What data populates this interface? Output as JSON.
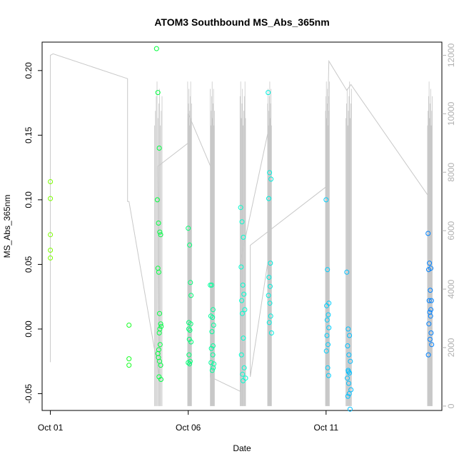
{
  "chart_data": {
    "type": "scatter",
    "title": "ATOM3 Southbound MS_Abs_365nm",
    "xlabel": "Date",
    "ylabel": "MS_Abs_365nm",
    "x_ticks": [
      "Oct 01",
      "Oct 06",
      "Oct 11"
    ],
    "x_tick_days": [
      1,
      6,
      11
    ],
    "xlim": [
      0.7,
      15.2
    ],
    "ylim": [
      -0.063,
      0.222
    ],
    "y_ticks": [
      -0.05,
      0.0,
      0.05,
      0.1,
      0.15,
      0.2
    ],
    "y_tick_labels": [
      "-0.05",
      "0.00",
      "0.05",
      "0.10",
      "0.15",
      "0.20"
    ],
    "y2lim": [
      -150,
      12450
    ],
    "y2_ticks": [
      0,
      2000,
      4000,
      6000,
      8000,
      10000,
      12000
    ],
    "y2_tick_labels": [
      "0",
      "2000",
      "4000",
      "6000",
      "8000",
      "10000",
      "12000"
    ],
    "grid": false,
    "colors": {
      "axis": "#000000",
      "altitude_line": "#c8c8c8",
      "right_axis": "#b0b0b0",
      "point_palette": [
        "#7cff00",
        "#00ff2a",
        "#00ffd0",
        "#00c8ff",
        "#0080ff"
      ]
    },
    "series": [
      {
        "x": [
          1.0,
          1.0,
          1.0,
          1.0,
          1.0,
          3.85,
          3.85,
          3.85,
          4.85,
          4.9,
          4.95,
          4.88,
          4.92,
          4.97,
          5.0,
          4.9,
          4.93,
          4.96,
          5.0,
          5.02,
          4.95,
          4.98,
          4.9,
          4.92,
          4.96,
          5.0,
          4.94,
          5.01,
          4.97,
          4.93,
          6.0,
          6.05,
          6.08,
          6.1,
          6.02,
          6.06,
          6.04,
          6.1,
          6.03,
          6.07,
          6.0,
          6.05,
          6.09,
          6.02,
          6.8,
          6.85,
          6.9,
          6.82,
          6.88,
          6.92,
          6.86,
          6.9,
          6.84,
          6.89,
          6.83,
          6.91,
          6.87,
          6.93,
          7.9,
          7.95,
          8.0,
          7.92,
          7.98,
          8.02,
          7.94,
          8.05,
          7.96,
          8.0,
          7.93,
          8.03,
          7.97,
          8.08,
          7.99,
          8.9,
          8.95,
          9.0,
          8.92,
          8.98,
          8.93,
          8.97,
          8.91,
          8.96,
          8.94,
          8.99,
          9.02,
          11.0,
          11.05,
          11.1,
          11.02,
          11.08,
          11.04,
          11.1,
          11.03,
          11.07,
          11.01,
          11.06,
          11.09,
          11.75,
          11.8,
          11.85,
          11.78,
          11.83,
          11.88,
          11.8,
          11.85,
          11.77,
          11.82,
          11.9,
          11.84,
          11.79,
          11.87,
          11.81,
          14.7,
          14.75,
          14.8,
          14.72,
          14.78,
          14.82,
          14.74,
          14.8,
          14.76,
          14.79,
          14.73,
          14.81,
          14.77,
          14.83,
          14.71
        ],
        "y": [
          0.114,
          0.101,
          0.073,
          0.061,
          0.055,
          0.003,
          -0.023,
          -0.028,
          0.217,
          0.183,
          0.14,
          0.1,
          0.082,
          0.075,
          0.073,
          0.047,
          0.044,
          0.012,
          0.004,
          0.002,
          -0.003,
          -0.012,
          -0.019,
          -0.022,
          -0.025,
          -0.028,
          -0.037,
          -0.039,
          0.0,
          -0.016,
          0.078,
          0.065,
          0.036,
          0.026,
          0.005,
          -0.001,
          -0.008,
          -0.01,
          -0.02,
          -0.025,
          -0.026,
          -0.027,
          0.004,
          0.0,
          0.034,
          0.034,
          0.015,
          0.01,
          0.009,
          0.003,
          -0.002,
          -0.013,
          -0.015,
          -0.02,
          -0.026,
          -0.03,
          -0.032,
          -0.027,
          0.094,
          0.083,
          0.071,
          0.048,
          0.034,
          0.027,
          0.022,
          0.015,
          0.012,
          -0.007,
          -0.02,
          -0.03,
          -0.035,
          -0.038,
          -0.04,
          0.183,
          0.121,
          0.116,
          0.101,
          0.051,
          0.04,
          0.033,
          0.026,
          0.02,
          0.005,
          0.01,
          -0.003,
          0.1,
          0.046,
          0.02,
          0.018,
          0.011,
          0.007,
          0.001,
          -0.005,
          -0.012,
          -0.017,
          -0.03,
          -0.036,
          0.044,
          0.0,
          -0.005,
          -0.013,
          -0.02,
          -0.025,
          -0.032,
          -0.034,
          -0.038,
          -0.042,
          -0.047,
          -0.05,
          -0.052,
          -0.062,
          -0.033,
          0.074,
          0.051,
          0.047,
          0.046,
          0.03,
          0.022,
          0.022,
          0.015,
          0.013,
          0.01,
          0.004,
          -0.003,
          -0.008,
          -0.012,
          -0.02
        ]
      }
    ],
    "altitude_series": {
      "x": [
        1.0,
        1.0,
        1.1,
        3.8,
        3.8,
        3.85,
        4.95,
        4.9,
        6.0,
        6.0,
        6.9,
        6.8,
        7.9,
        7.9,
        8.9,
        8.9,
        8.25,
        8.25,
        11.0,
        11.1,
        11.75,
        11.9,
        14.7,
        14.75
      ],
      "y": [
        1500,
        12000,
        12050,
        11200,
        7000,
        7000,
        1000,
        8200,
        9000,
        10000,
        8000,
        1000,
        500,
        5000,
        9400,
        5000,
        1000,
        5500,
        7500,
        11800,
        10800,
        11000,
        7200,
        7500
      ]
    }
  }
}
